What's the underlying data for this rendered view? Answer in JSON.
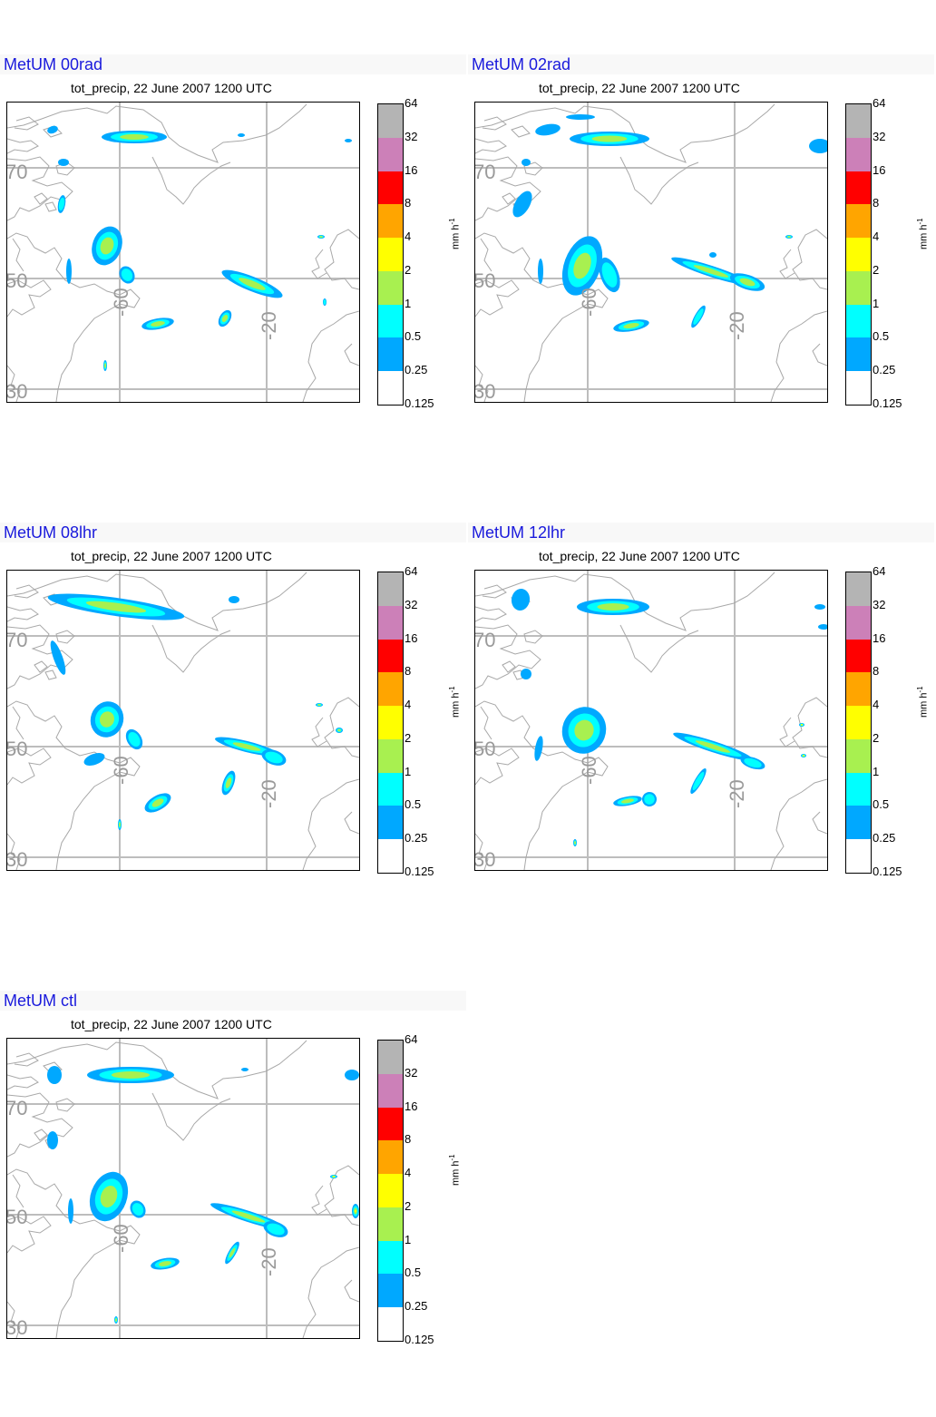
{
  "subtitle": "tot_precip, 22 June 2007 1200 UTC",
  "lat_labels": [
    "70",
    "50",
    "30"
  ],
  "lon_labels": [
    "-60",
    "-20"
  ],
  "colorbar": {
    "units": "mm h",
    "units_exp": "-1",
    "levels": [
      "64",
      "32",
      "16",
      "8",
      "4",
      "2",
      "1",
      "0.5",
      "0.25",
      "0.125"
    ],
    "colors": [
      "#b4b4b4",
      "#cc80b8",
      "#ff0000",
      "#ffa500",
      "#ffff00",
      "#a8f050",
      "#00ffff",
      "#00a8ff",
      "#ffffff"
    ]
  },
  "panels": [
    {
      "title": "MetUM 00rad"
    },
    {
      "title": "MetUM 02rad"
    },
    {
      "title": "MetUM 08lhr"
    },
    {
      "title": "MetUM 12lhr"
    },
    {
      "title": "MetUM ctl"
    }
  ]
}
